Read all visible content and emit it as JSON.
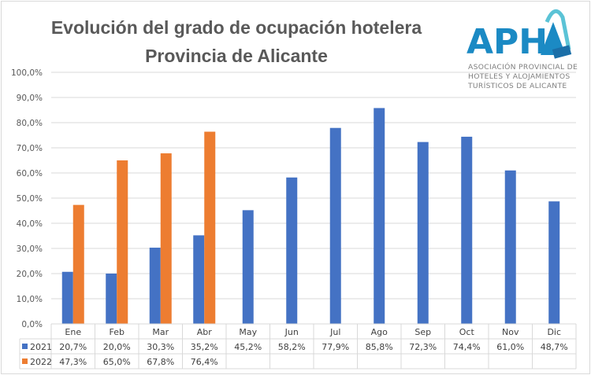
{
  "chart_data": {
    "type": "bar",
    "title": [
      "Evolución del grado de ocupación hotelera",
      "Provincia de Alicante"
    ],
    "categories": [
      "Ene",
      "Feb",
      "Mar",
      "Abr",
      "May",
      "Jun",
      "Jul",
      "Ago",
      "Sep",
      "Oct",
      "Nov",
      "Dic"
    ],
    "series": [
      {
        "name": "2021",
        "color": "#4472C4",
        "values": [
          20.7,
          20.0,
          30.3,
          35.2,
          45.2,
          58.2,
          77.9,
          85.8,
          72.3,
          74.4,
          61.0,
          48.7
        ],
        "labels": [
          "20,7%",
          "20,0%",
          "30,3%",
          "35,2%",
          "45,2%",
          "58,2%",
          "77,9%",
          "85,8%",
          "72,3%",
          "74,4%",
          "61,0%",
          "48,7%"
        ]
      },
      {
        "name": "2022",
        "color": "#ED7D31",
        "values": [
          47.3,
          65.0,
          67.8,
          76.4,
          null,
          null,
          null,
          null,
          null,
          null,
          null,
          null
        ],
        "labels": [
          "47,3%",
          "65,0%",
          "67,8%",
          "76,4%",
          "",
          "",
          "",
          "",
          "",
          "",
          "",
          ""
        ]
      }
    ],
    "ylim": [
      0,
      100
    ],
    "yticks": [
      "0,0%",
      "10,0%",
      "20,0%",
      "30,0%",
      "40,0%",
      "50,0%",
      "60,0%",
      "70,0%",
      "80,0%",
      "90,0%",
      "100,0%"
    ],
    "grid": true,
    "legend": "data-table",
    "xlabel": "",
    "ylabel": ""
  },
  "logo": {
    "name": "APHA",
    "lines": [
      "ASOCIACIÓN PROVINCIAL DE",
      "HOTELES Y ALOJAMIENTOS",
      "TURÍSTICOS DE ALICANTE"
    ],
    "color": "#1B8AC4"
  }
}
